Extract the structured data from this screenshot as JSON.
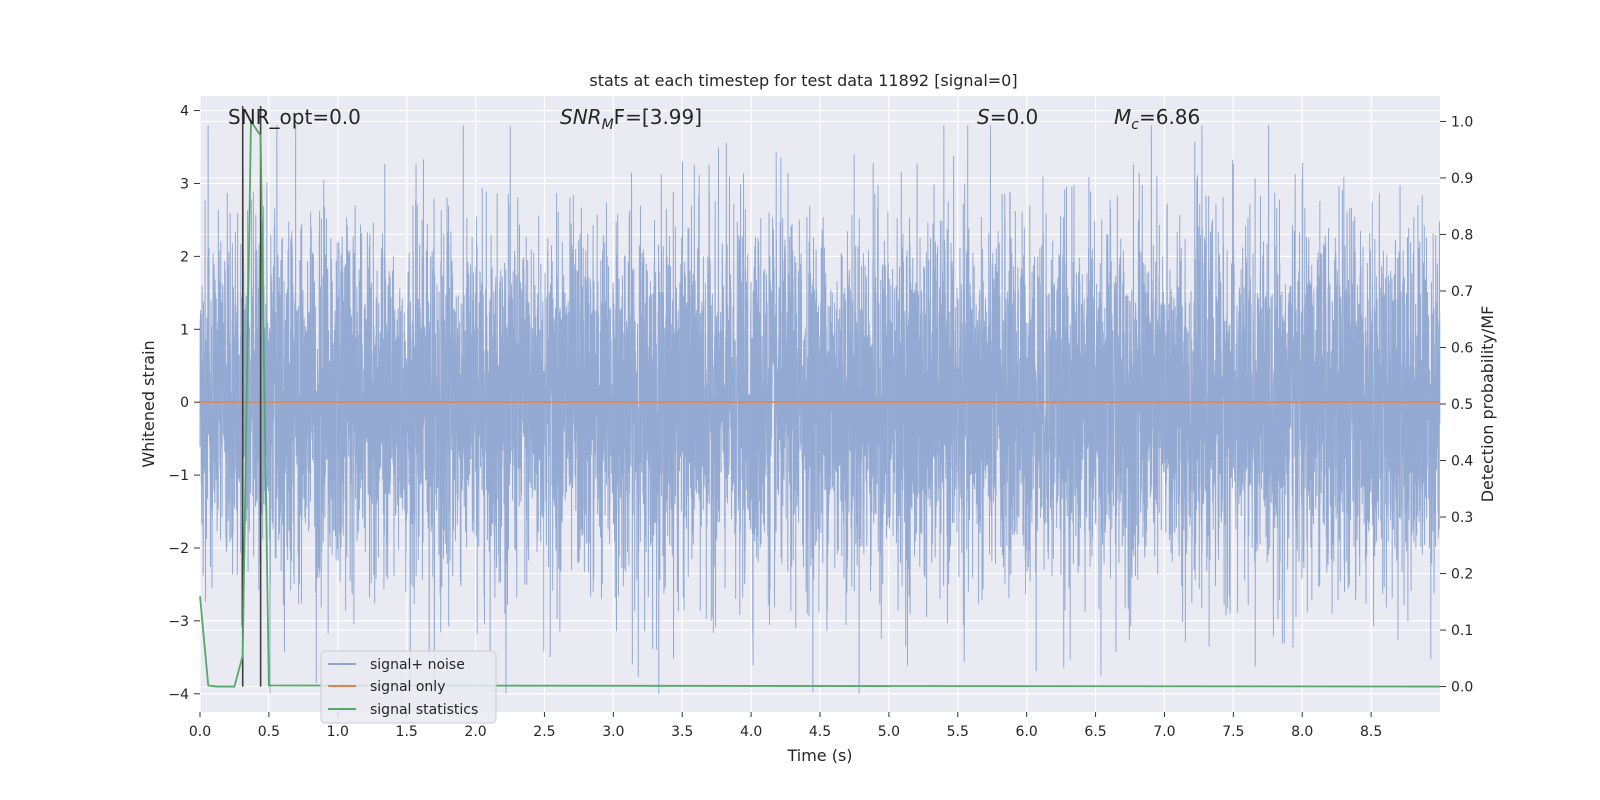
{
  "chart_data": {
    "type": "line",
    "title": "stats at each timestep for test data 11892 [signal=0]",
    "xlabel": "Time (s)",
    "ylabel_left": "Whitened strain",
    "ylabel_right": "Detection probability/MF",
    "xlim": [
      0.0,
      9.0
    ],
    "ylim_left": [
      -4.25,
      4.2
    ],
    "ylim_right": [
      -0.045,
      1.045
    ],
    "x_ticks": [
      "0.0",
      "0.5",
      "1.0",
      "1.5",
      "2.0",
      "2.5",
      "3.0",
      "3.5",
      "4.0",
      "4.5",
      "5.0",
      "5.5",
      "6.0",
      "6.5",
      "7.0",
      "7.5",
      "8.0",
      "8.5"
    ],
    "y_ticks_left": [
      "4",
      "3",
      "2",
      "1",
      "0",
      "−1",
      "−2",
      "−3",
      "−4"
    ],
    "y_ticks_right": [
      "1.0",
      "0.9",
      "0.8",
      "0.7",
      "0.6",
      "0.5",
      "0.4",
      "0.3",
      "0.2",
      "0.1",
      "0.0"
    ],
    "grid": true,
    "legend_position": "lower-left",
    "annotations": {
      "snr_opt": "SNR_opt=0.0",
      "snr_mf_main": "SNR",
      "snr_mf_sub": "M",
      "snr_mf_rest": "F=[3.99]",
      "s_italic": "S",
      "s_rest": "=0.0",
      "mc_main": "M",
      "mc_sub": "c",
      "mc_rest": "=6.86"
    },
    "series": [
      {
        "name": "signal+ noise",
        "color": "#8fa6d1",
        "axis": "left",
        "sampling_rate_hz": 1000,
        "typical_abs_amplitude": 1.5,
        "max": 3.8,
        "min": -4.0
      },
      {
        "name": "signal only",
        "color": "#dd8452",
        "axis": "left",
        "x": [
          0.0,
          9.0
        ],
        "y": [
          0.0,
          0.0
        ]
      },
      {
        "name": "signal statistics",
        "color": "#55a868",
        "axis": "right",
        "x": [
          0.0,
          0.06,
          0.12,
          0.25,
          0.31,
          0.37,
          0.44,
          0.5,
          9.0
        ],
        "y": [
          0.16,
          0.002,
          0.0,
          0.0,
          0.055,
          1.0,
          0.975,
          0.002,
          0.0
        ]
      }
    ],
    "vertical_markers": [
      {
        "x": 0.31,
        "color": "#404040"
      },
      {
        "x": 0.44,
        "color": "#404040"
      }
    ]
  }
}
